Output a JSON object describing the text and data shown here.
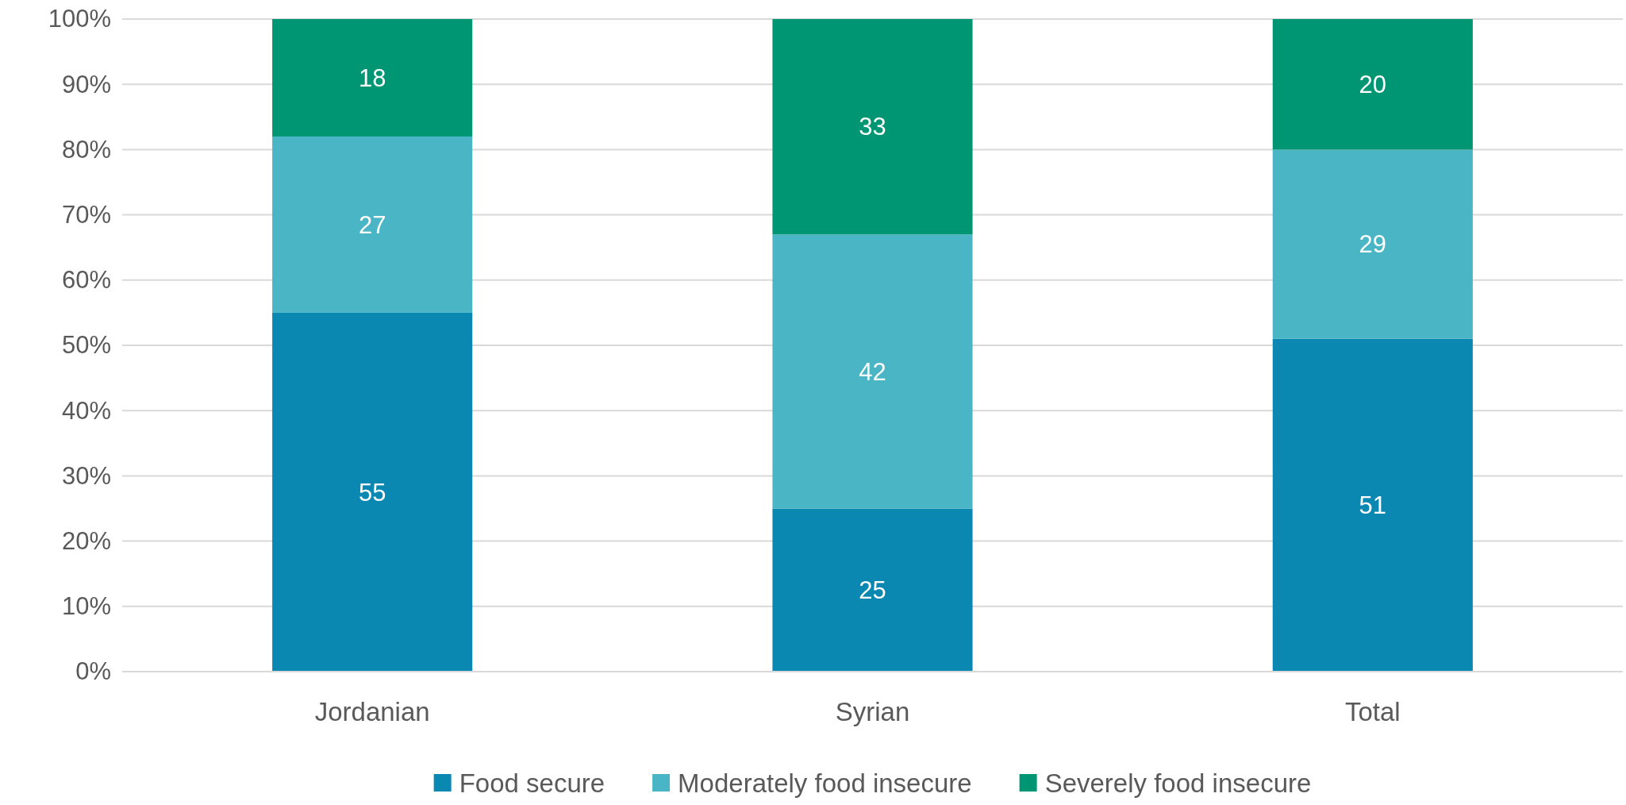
{
  "chart_data": {
    "type": "bar",
    "stacked": true,
    "categories": [
      "Jordanian",
      "Syrian",
      "Total"
    ],
    "series": [
      {
        "name": "Food secure",
        "color": "#0b88b2",
        "values": [
          55,
          25,
          51
        ]
      },
      {
        "name": "Moderately food insecure",
        "color": "#4ab5c4",
        "values": [
          27,
          42,
          29
        ]
      },
      {
        "name": "Severely food insecure",
        "color": "#009673",
        "values": [
          18,
          33,
          20
        ]
      }
    ],
    "ylim": [
      0,
      100
    ],
    "yticks": [
      {
        "value": 0,
        "label": "0%"
      },
      {
        "value": 10,
        "label": "10%"
      },
      {
        "value": 20,
        "label": "20%"
      },
      {
        "value": 30,
        "label": "30%"
      },
      {
        "value": 40,
        "label": "40%"
      },
      {
        "value": 50,
        "label": "50%"
      },
      {
        "value": 60,
        "label": "60%"
      },
      {
        "value": 70,
        "label": "70%"
      },
      {
        "value": 80,
        "label": "80%"
      },
      {
        "value": 90,
        "label": "90%"
      },
      {
        "value": 100,
        "label": "100%"
      }
    ],
    "grid": "y",
    "legend": "bottom",
    "data_labels": true
  }
}
